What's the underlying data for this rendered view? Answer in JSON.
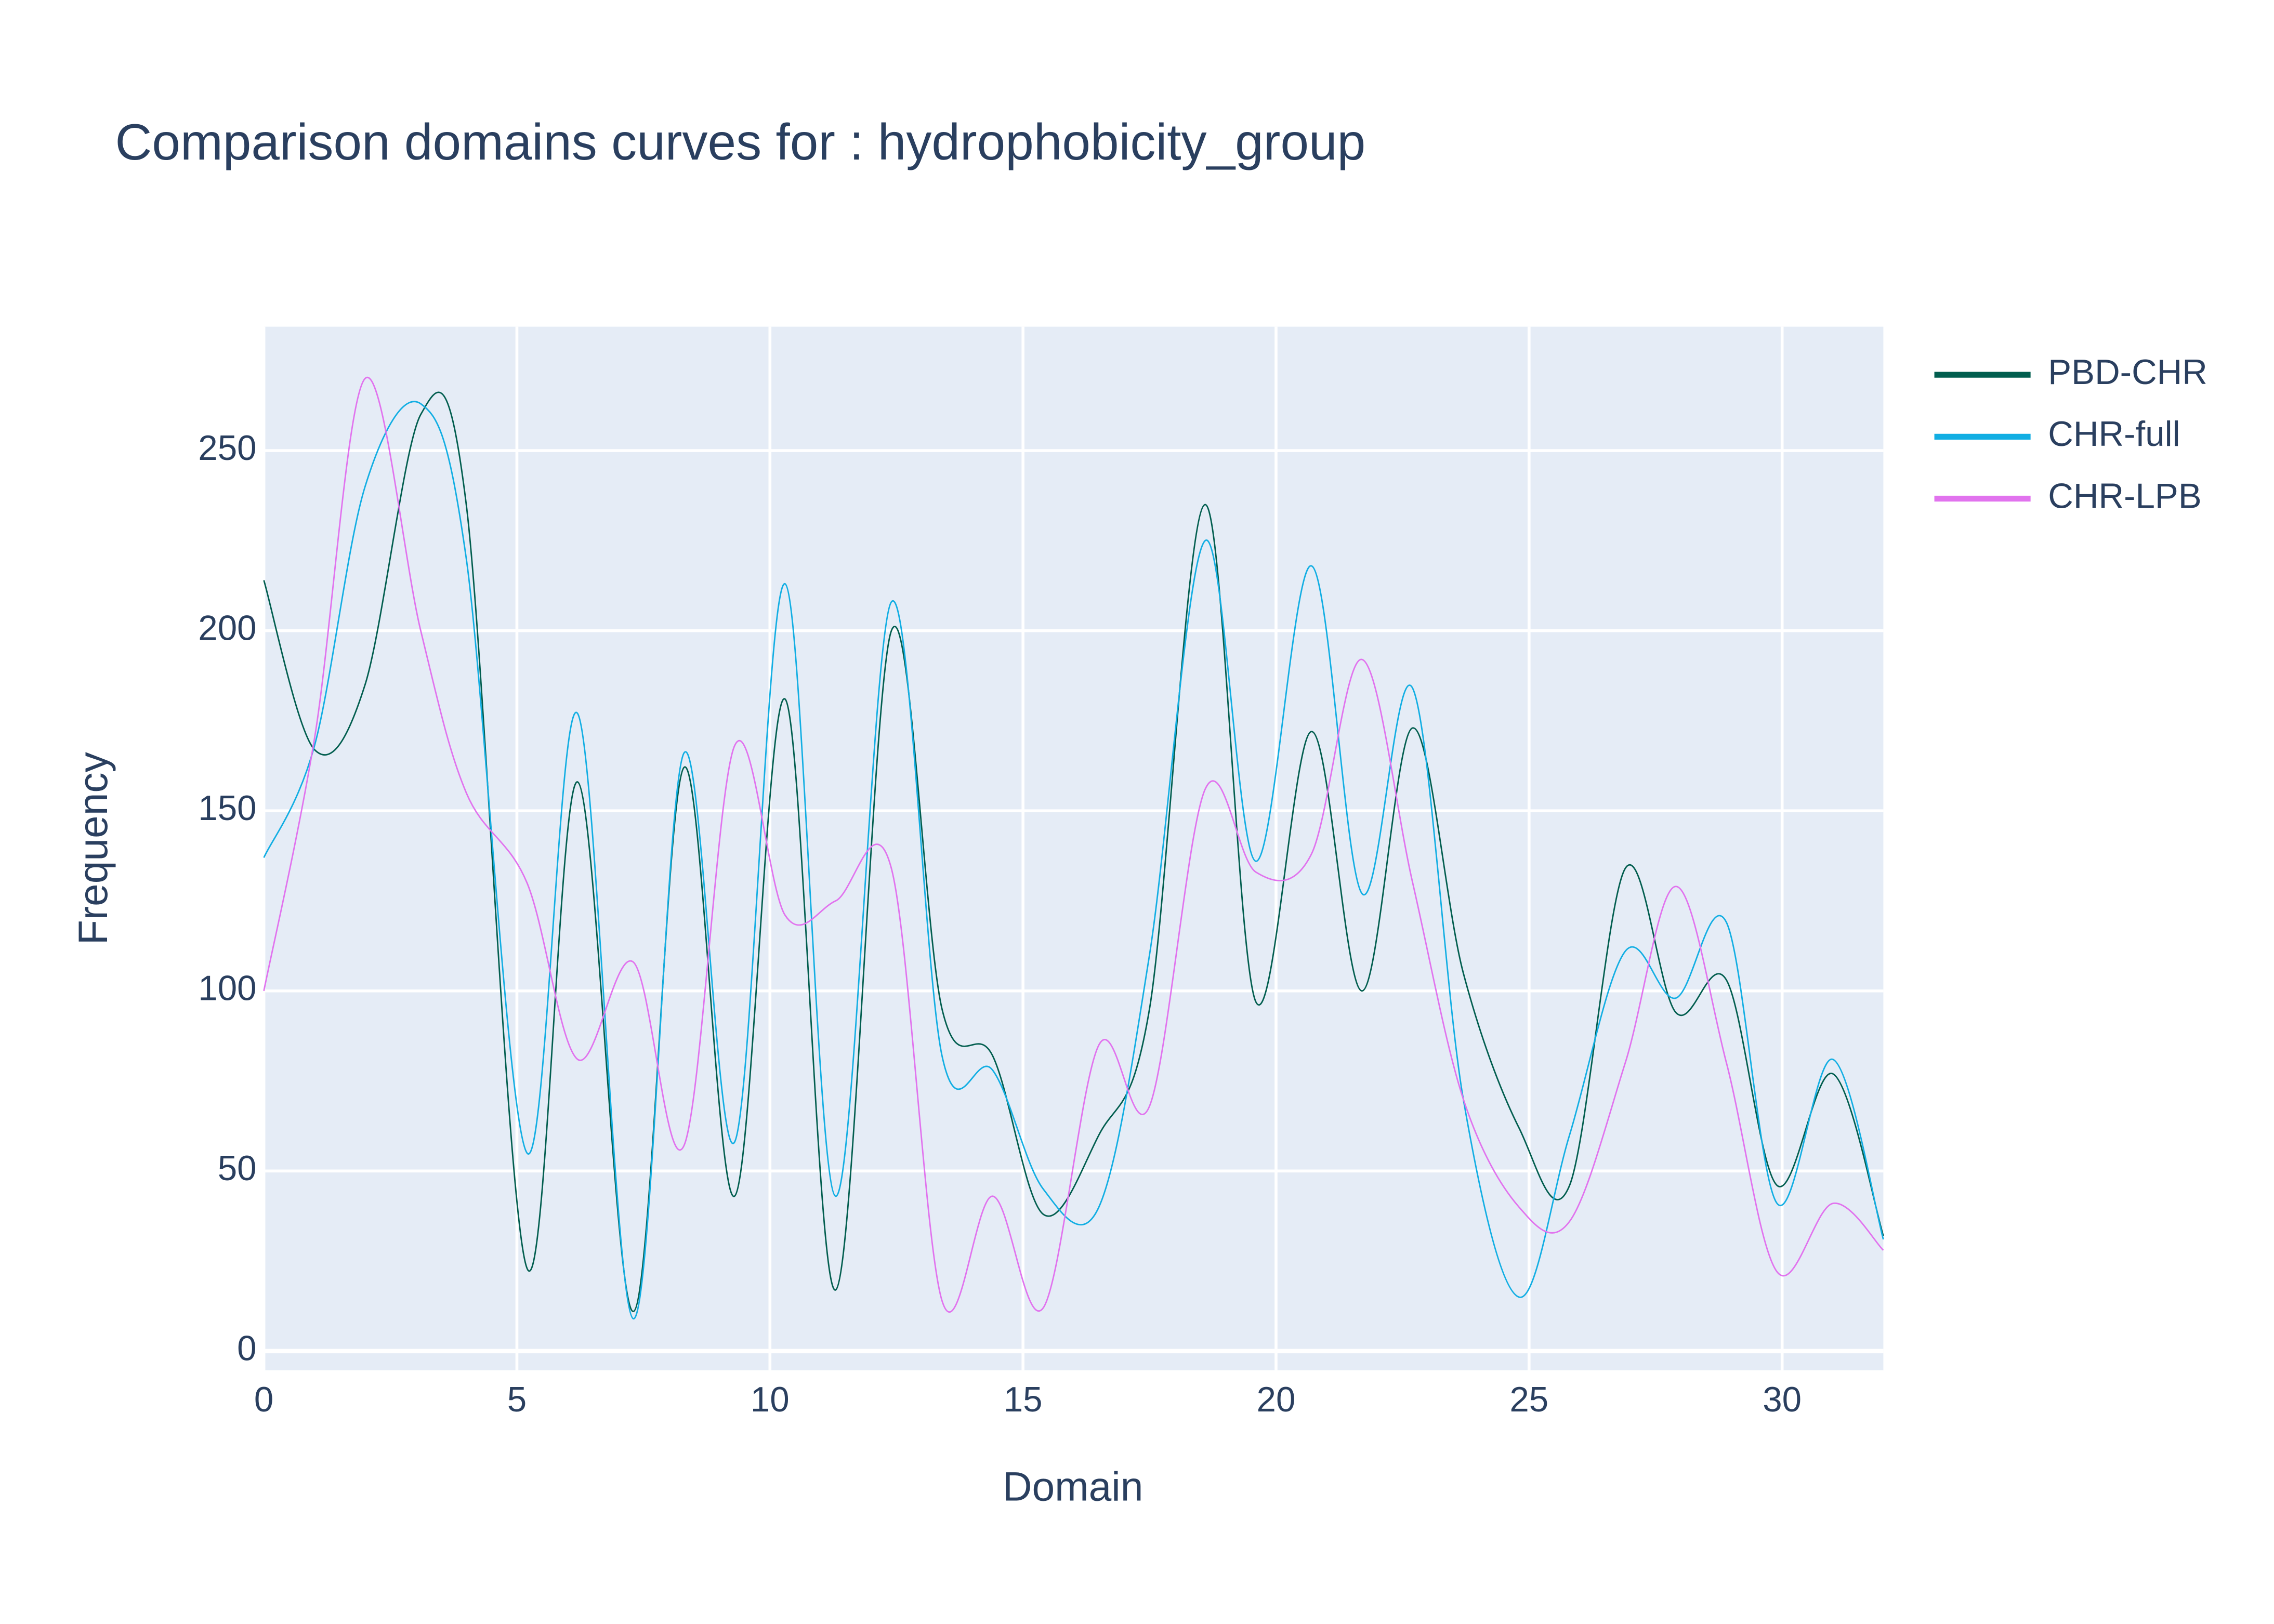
{
  "chart_data": {
    "type": "line",
    "title": "Comparison domains curves for : hydrophobicity_group",
    "x_label": "Domain",
    "y_label": "Frequency",
    "x": [
      0,
      1,
      2,
      3.1,
      4,
      5.2,
      6.2,
      7.3,
      8.3,
      9.3,
      10.3,
      11.3,
      12.4,
      13.4,
      14.4,
      15.4,
      16.5,
      17.5,
      18.6,
      19.6,
      20.7,
      21.7,
      22.7,
      23.7,
      24.8,
      25.8,
      26.9,
      27.9,
      28.9,
      29.9,
      31,
      32
    ],
    "series": [
      {
        "name": "PBD-CHR",
        "color": "#025e4f",
        "values": [
          214,
          167,
          185,
          260,
          235,
          23,
          158,
          11,
          162,
          43,
          181,
          17,
          200,
          95,
          82,
          38,
          60,
          95,
          235,
          97,
          172,
          100,
          173,
          105,
          62,
          46,
          134,
          94,
          103,
          46,
          77,
          32
        ]
      },
      {
        "name": "CHR-full",
        "color": "#12aee3",
        "values": [
          137,
          168,
          240,
          263,
          220,
          55,
          177,
          9,
          166,
          58,
          213,
          43,
          208,
          82,
          78,
          45,
          40,
          110,
          225,
          136,
          218,
          127,
          184,
          70,
          15,
          60,
          111,
          98,
          119,
          41,
          81,
          31
        ]
      },
      {
        "name": "CHR-LPB",
        "color": "#e173ee",
        "values": [
          100,
          170,
          270,
          200,
          155,
          130,
          81,
          108,
          57,
          168,
          121,
          125,
          134,
          14,
          43,
          12,
          85,
          68,
          156,
          133,
          138,
          192,
          130,
          70,
          40,
          36,
          80,
          129,
          80,
          22,
          41,
          28
        ]
      }
    ],
    "xlim": [
      0,
      32
    ],
    "xticks": [
      0,
      5,
      10,
      15,
      20,
      25,
      30
    ],
    "ylim": [
      -5.3,
      284.4
    ],
    "yticks": [
      0,
      50,
      100,
      150,
      200,
      250
    ],
    "grid": true,
    "legend": "right"
  }
}
